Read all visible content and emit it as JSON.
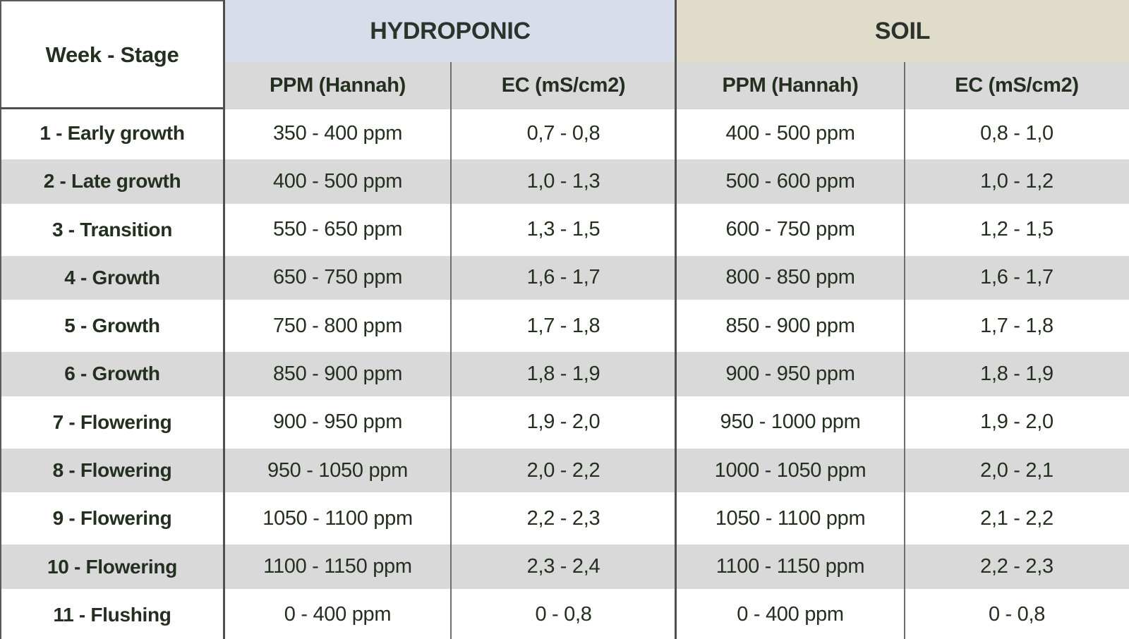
{
  "chart_data": {
    "type": "table",
    "corner_header": "Week - Stage",
    "column_groups": [
      {
        "label": "HYDROPONIC",
        "bg": "#d8dee9",
        "span": 2
      },
      {
        "label": "SOIL",
        "bg": "#dfdcc9",
        "span": 2
      }
    ],
    "sub_headers": [
      "PPM (Hannah)",
      "EC (mS/cm2)",
      "PPM (Hannah)",
      "EC (mS/cm2)"
    ],
    "rows": [
      [
        "1 - Early growth",
        "350 - 400 ppm",
        "0,7 - 0,8",
        "400 - 500 ppm",
        "0,8 - 1,0"
      ],
      [
        "2 - Late growth",
        "400 - 500 ppm",
        "1,0 - 1,3",
        "500 - 600 ppm",
        "1,0 - 1,2"
      ],
      [
        "3 - Transition",
        "550 - 650 ppm",
        "1,3 - 1,5",
        "600 - 750 ppm",
        "1,2 - 1,5"
      ],
      [
        "4 - Growth",
        "650 - 750 ppm",
        "1,6 - 1,7",
        "800 - 850 ppm",
        "1,6 - 1,7"
      ],
      [
        "5 - Growth",
        "750 - 800 ppm",
        "1,7 - 1,8",
        "850 - 900 ppm",
        "1,7 - 1,8"
      ],
      [
        "6 - Growth",
        "850 - 900 ppm",
        "1,8 - 1,9",
        "900 - 950 ppm",
        "1,8 - 1,9"
      ],
      [
        "7 - Flowering",
        "900 - 950 ppm",
        "1,9 - 2,0",
        "950 - 1000 ppm",
        "1,9 - 2,0"
      ],
      [
        "8 - Flowering",
        "950 - 1050 ppm",
        "2,0 - 2,2",
        "1000 - 1050 ppm",
        "2,0 - 2,1"
      ],
      [
        "9 - Flowering",
        "1050 - 1100 ppm",
        "2,2 - 2,3",
        "1050 - 1100 ppm",
        "2,1 - 2,2"
      ],
      [
        "10 - Flowering",
        "1100 - 1150 ppm",
        "2,3 - 2,4",
        "1100 - 1150 ppm",
        "2,2 - 2,3"
      ],
      [
        "11 - Flushing",
        "0 - 400 ppm",
        "0 - 0,8",
        "0 - 400 ppm",
        "0 - 0,8"
      ]
    ],
    "colors": {
      "hydroponic_header_bg": "#d8dee9",
      "soil_header_bg": "#dfdcc9",
      "subheader_bg": "#d9d9d9",
      "row_alt_bg": "#d9d9d9",
      "row_bg": "#ffffff",
      "text": "#24301f",
      "strong_border": "#4f4f4f",
      "thin_divider": "#6e6e6e"
    },
    "layout": {
      "grid": "off",
      "row_striping": "alternate white/gray starting white"
    }
  }
}
